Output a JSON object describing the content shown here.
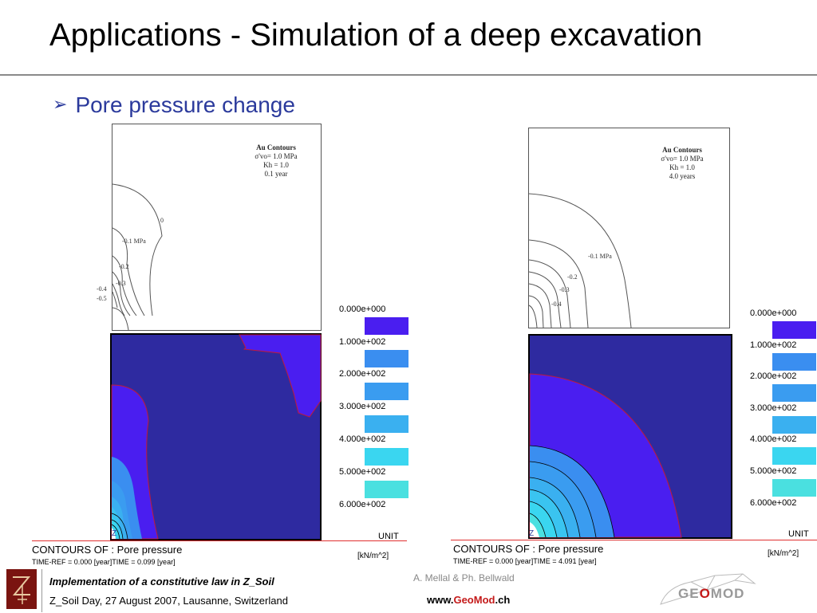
{
  "title": "Applications - Simulation of a deep excavation",
  "bullet": "Pore pressure change",
  "left_figure": {
    "contour_box": {
      "heading": "Au Contours",
      "line1": "σ'vo= 1.0 MPa",
      "line2": "Kh = 1.0",
      "line3": "0.1 year"
    },
    "contour_labels": [
      "0",
      "-0.1 MPa",
      "-0.2",
      "-0.3",
      "-0.4",
      "-0.5"
    ],
    "legend": [
      "0.000e+000",
      "1.000e+002",
      "2.000e+002",
      "3.000e+002",
      "4.000e+002",
      "5.000e+002",
      "6.000e+002"
    ],
    "contours_of": "CONTOURS OF : Pore pressure",
    "time_ref": "TIME-REF = 0.000 [year]TIME = 0.099 [year]",
    "unit_label": "UNIT",
    "unit_value": "[kN/m^2]",
    "z_label": "Z"
  },
  "right_figure": {
    "contour_box": {
      "heading": "Au Contours",
      "line1": "σ'vo= 1.0 MPa",
      "line2": "Kh = 1.0",
      "line3": "4.0 years"
    },
    "contour_labels": [
      "-0.1 MPa",
      "-0.2",
      "-0.3",
      "-0.4"
    ],
    "legend": [
      "0.000e+000",
      "1.000e+002",
      "2.000e+002",
      "3.000e+002",
      "4.000e+002",
      "5.000e+002",
      "6.000e+002"
    ],
    "contours_of": "CONTOURS OF : Pore pressure",
    "time_ref": "TIME-REF = 0.000 [year]TIME = 4.091 [year]",
    "unit_label": "UNIT",
    "unit_value": "[kN/m^2]",
    "z_label": "Z"
  },
  "legend_colors": [
    "#4a1ef0",
    "#3a8ef0",
    "#3a9cf0",
    "#3ab0f0",
    "#3ac4f0",
    "#3ad6f0",
    "#4ae0e0"
  ],
  "footer": {
    "line1": "Implementation of a constitutive law in Z_Soil",
    "line2": "Z_Soil Day, 27 August 2007, Lausanne, Switzerland",
    "authors": "A. Mellal & Ph. Bellwald",
    "web_prefix": "www.",
    "web_geo": "Geo",
    "web_mod": "Mod",
    "web_suffix": ".ch",
    "logo_left": "GE",
    "logo_o": "O",
    "logo_right": "MOD"
  }
}
